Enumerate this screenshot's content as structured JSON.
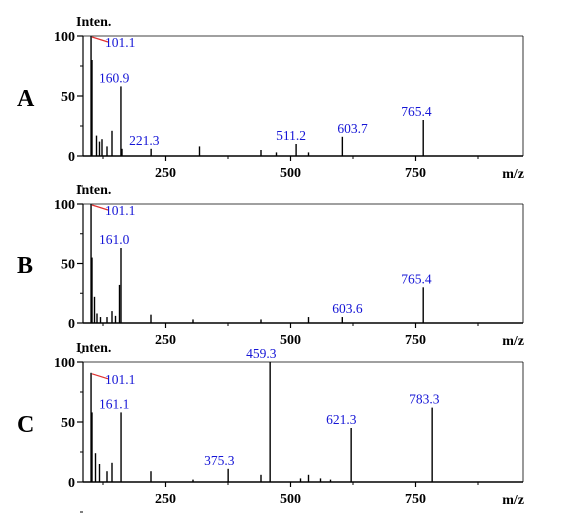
{
  "colors": {
    "peak_label": "#1515d6",
    "axis": "#000000",
    "peak": "#000000",
    "base_peak_marker": "#e03030"
  },
  "chart_data": [
    {
      "type": "bar",
      "panel_label": "A",
      "y_axis_title": "Inten.",
      "x_axis_title": "m/z",
      "xlim": [
        85,
        965
      ],
      "ylim": [
        0,
        100
      ],
      "x_ticks": [
        250,
        500,
        750
      ],
      "y_ticks": [
        0,
        50,
        100
      ],
      "peaks": [
        {
          "mz": 101.1,
          "intensity": 100,
          "label": "101.1"
        },
        {
          "mz": 103,
          "intensity": 80
        },
        {
          "mz": 112,
          "intensity": 17
        },
        {
          "mz": 118,
          "intensity": 12
        },
        {
          "mz": 123,
          "intensity": 14
        },
        {
          "mz": 133,
          "intensity": 8
        },
        {
          "mz": 143,
          "intensity": 21
        },
        {
          "mz": 160.9,
          "intensity": 58,
          "label": "160.9"
        },
        {
          "mz": 163,
          "intensity": 6
        },
        {
          "mz": 221.3,
          "intensity": 6,
          "label": "221.3"
        },
        {
          "mz": 318,
          "intensity": 8
        },
        {
          "mz": 441,
          "intensity": 5
        },
        {
          "mz": 472,
          "intensity": 3
        },
        {
          "mz": 511.2,
          "intensity": 10,
          "label": "511.2"
        },
        {
          "mz": 536,
          "intensity": 3
        },
        {
          "mz": 603.7,
          "intensity": 16,
          "label": "603.7"
        },
        {
          "mz": 765.4,
          "intensity": 30,
          "label": "765.4"
        }
      ]
    },
    {
      "type": "bar",
      "panel_label": "B",
      "y_axis_title": "Inten.",
      "x_axis_title": "m/z",
      "xlim": [
        85,
        965
      ],
      "ylim": [
        0,
        100
      ],
      "x_ticks": [
        250,
        500,
        750
      ],
      "y_ticks": [
        0,
        50,
        100
      ],
      "peaks": [
        {
          "mz": 101.1,
          "intensity": 100,
          "label": "101.1"
        },
        {
          "mz": 103,
          "intensity": 55
        },
        {
          "mz": 108,
          "intensity": 22
        },
        {
          "mz": 113,
          "intensity": 8
        },
        {
          "mz": 120,
          "intensity": 5
        },
        {
          "mz": 133,
          "intensity": 5
        },
        {
          "mz": 143,
          "intensity": 10
        },
        {
          "mz": 150,
          "intensity": 6
        },
        {
          "mz": 158,
          "intensity": 32
        },
        {
          "mz": 161.0,
          "intensity": 63,
          "label": "161.0"
        },
        {
          "mz": 221,
          "intensity": 7
        },
        {
          "mz": 305,
          "intensity": 3
        },
        {
          "mz": 441,
          "intensity": 3
        },
        {
          "mz": 536,
          "intensity": 5
        },
        {
          "mz": 603.6,
          "intensity": 5,
          "label": "603.6"
        },
        {
          "mz": 765.4,
          "intensity": 30,
          "label": "765.4"
        }
      ]
    },
    {
      "type": "bar",
      "panel_label": "C",
      "y_axis_title": "Inten.",
      "x_axis_title": "m/z",
      "xlim": [
        85,
        965
      ],
      "ylim": [
        0,
        100
      ],
      "x_ticks": [
        250,
        500,
        750
      ],
      "y_ticks": [
        0,
        50,
        100
      ],
      "peaks": [
        {
          "mz": 101.1,
          "intensity": 91,
          "label": "101.1"
        },
        {
          "mz": 103,
          "intensity": 58
        },
        {
          "mz": 110,
          "intensity": 24
        },
        {
          "mz": 118,
          "intensity": 15
        },
        {
          "mz": 133,
          "intensity": 9
        },
        {
          "mz": 143,
          "intensity": 16
        },
        {
          "mz": 161.1,
          "intensity": 58,
          "label": "161.1"
        },
        {
          "mz": 221,
          "intensity": 9
        },
        {
          "mz": 305,
          "intensity": 2
        },
        {
          "mz": 375.3,
          "intensity": 11,
          "label": "375.3"
        },
        {
          "mz": 441,
          "intensity": 6
        },
        {
          "mz": 459.3,
          "intensity": 100,
          "label": "459.3"
        },
        {
          "mz": 520,
          "intensity": 3
        },
        {
          "mz": 536,
          "intensity": 6
        },
        {
          "mz": 560,
          "intensity": 3
        },
        {
          "mz": 580,
          "intensity": 2
        },
        {
          "mz": 621.3,
          "intensity": 45,
          "label": "621.3"
        },
        {
          "mz": 783.3,
          "intensity": 62,
          "label": "783.3"
        }
      ]
    }
  ]
}
